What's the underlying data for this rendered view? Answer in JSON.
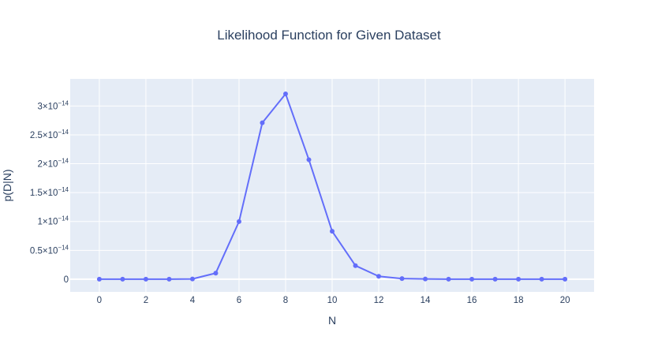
{
  "chart_data": {
    "type": "line",
    "title": "Likelihood Function for Given Dataset",
    "xlabel": "N",
    "ylabel": "p(D|N)",
    "x": [
      0,
      1,
      2,
      3,
      4,
      5,
      6,
      7,
      8,
      9,
      10,
      11,
      12,
      13,
      14,
      15,
      16,
      17,
      18,
      19,
      20
    ],
    "series": [
      {
        "values": [
          0,
          0,
          0,
          0,
          4e-17,
          1.05e-15,
          9.98e-15,
          2.71e-14,
          3.21e-14,
          2.07e-14,
          8.3e-15,
          2.35e-15,
          5e-16,
          1e-16,
          4e-17,
          1e-17,
          0,
          0,
          0,
          0,
          0
        ]
      }
    ],
    "xlim": [
      -1.25,
      21.25
    ],
    "ylim": [
      -2.2e-15,
      3.47e-14
    ],
    "x_ticks": [
      0,
      2,
      4,
      6,
      8,
      10,
      12,
      14,
      16,
      18,
      20
    ],
    "x_tick_labels": [
      "0",
      "2",
      "4",
      "6",
      "8",
      "10",
      "12",
      "14",
      "16",
      "18",
      "20"
    ],
    "y_ticks": [
      0,
      5e-15,
      1e-14,
      1.5e-14,
      2e-14,
      2.5e-14,
      3e-14
    ],
    "y_tick_labels": [
      {
        "base": "0",
        "exp": ""
      },
      {
        "base": "0.5×10",
        "exp": "−14"
      },
      {
        "base": "1×10",
        "exp": "−14"
      },
      {
        "base": "1.5×10",
        "exp": "−14"
      },
      {
        "base": "2×10",
        "exp": "−14"
      },
      {
        "base": "2.5×10",
        "exp": "−14"
      },
      {
        "base": "3×10",
        "exp": "−14"
      }
    ],
    "grid": true,
    "colors": {
      "plot_bg": "#e5ecf6",
      "grid": "#ffffff",
      "line": "#636efa",
      "text": "#2a3f5f"
    }
  }
}
